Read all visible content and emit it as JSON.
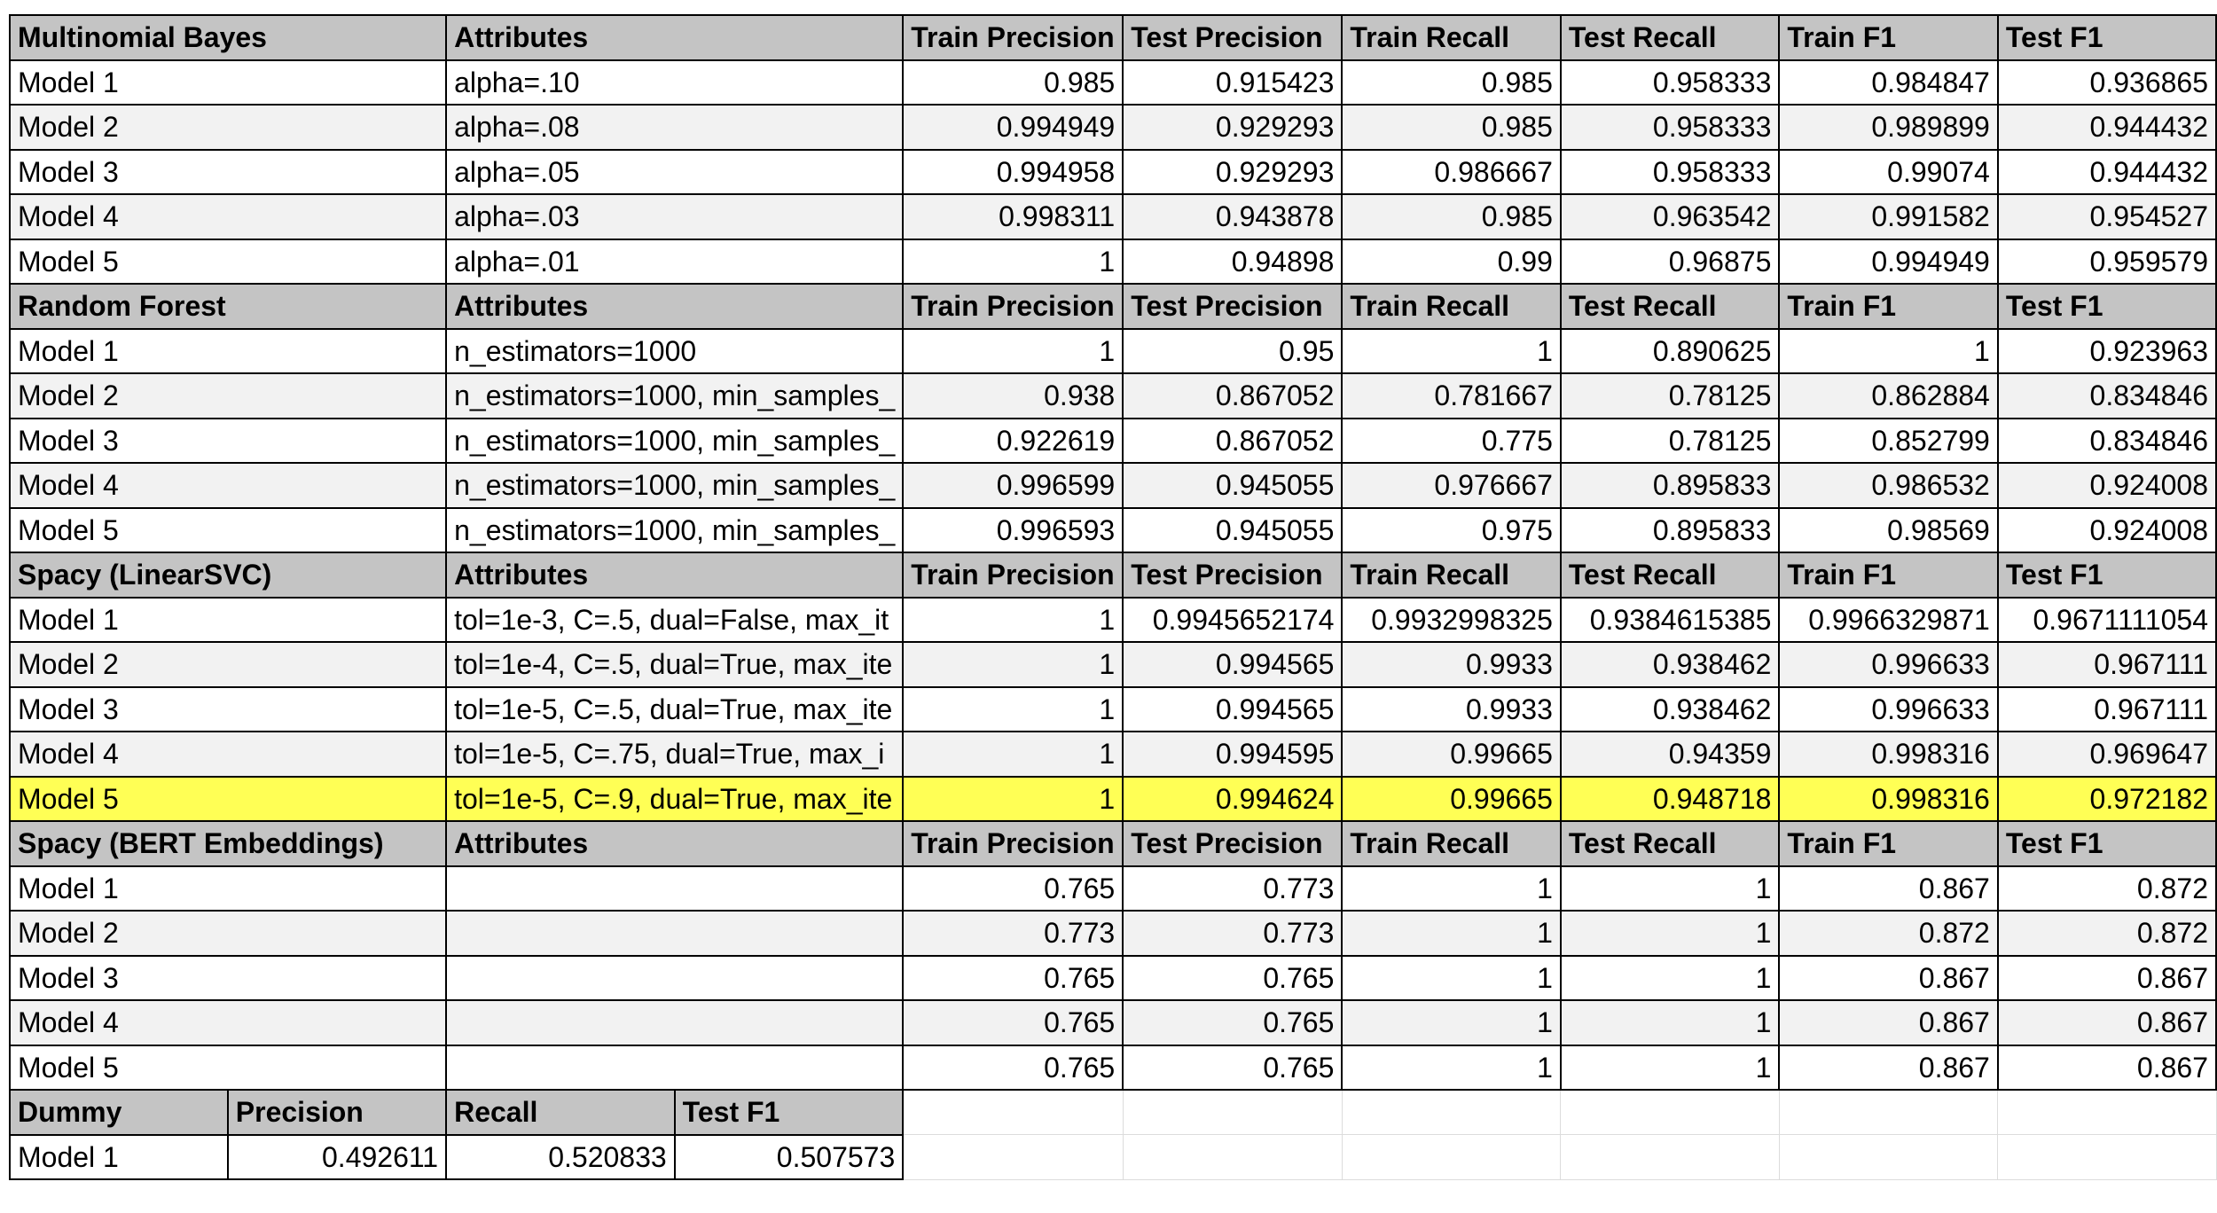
{
  "sections": [
    {
      "header": [
        "Multinomial Bayes",
        "Attributes",
        "Train Precision",
        "Test Precision",
        "Train Recall",
        "Test Recall",
        "Train F1",
        "Test F1"
      ],
      "rows": [
        [
          "Model 1",
          "alpha=.10",
          "0.985",
          "0.915423",
          "0.985",
          "0.958333",
          "0.984847",
          "0.936865"
        ],
        [
          "Model 2",
          "alpha=.08",
          "0.994949",
          "0.929293",
          "0.985",
          "0.958333",
          "0.989899",
          "0.944432"
        ],
        [
          "Model 3",
          "alpha=.05",
          "0.994958",
          "0.929293",
          "0.986667",
          "0.958333",
          "0.99074",
          "0.944432"
        ],
        [
          "Model 4",
          "alpha=.03",
          "0.998311",
          "0.943878",
          "0.985",
          "0.963542",
          "0.991582",
          "0.954527"
        ],
        [
          "Model 5",
          "alpha=.01",
          "1",
          "0.94898",
          "0.99",
          "0.96875",
          "0.994949",
          "0.959579"
        ]
      ]
    },
    {
      "header": [
        "Random Forest",
        "Attributes",
        "Train Precision",
        "Test Precision",
        "Train Recall",
        "Test Recall",
        "Train F1",
        "Test F1"
      ],
      "rows": [
        [
          "Model 1",
          "n_estimators=1000",
          "1",
          "0.95",
          "1",
          "0.890625",
          "1",
          "0.923963"
        ],
        [
          "Model 2",
          "n_estimators=1000, min_samples_",
          "0.938",
          "0.867052",
          "0.781667",
          "0.78125",
          "0.862884",
          "0.834846"
        ],
        [
          "Model 3",
          "n_estimators=1000, min_samples_",
          "0.922619",
          "0.867052",
          "0.775",
          "0.78125",
          "0.852799",
          "0.834846"
        ],
        [
          "Model 4",
          "n_estimators=1000, min_samples_",
          "0.996599",
          "0.945055",
          "0.976667",
          "0.895833",
          "0.986532",
          "0.924008"
        ],
        [
          "Model 5",
          "n_estimators=1000, min_samples_",
          "0.996593",
          "0.945055",
          "0.975",
          "0.895833",
          "0.98569",
          "0.924008"
        ]
      ]
    },
    {
      "header": [
        "Spacy (LinearSVC)",
        "Attributes",
        "Train Precision",
        "Test Precision",
        "Train Recall",
        "Test Recall",
        "Train F1",
        "Test F1"
      ],
      "rows": [
        [
          "Model 1",
          "tol=1e-3, C=.5, dual=False, max_it",
          "1",
          "0.9945652174",
          "0.9932998325",
          "0.9384615385",
          "0.9966329871",
          "0.9671111054"
        ],
        [
          "Model 2",
          "tol=1e-4, C=.5, dual=True, max_ite",
          "1",
          "0.994565",
          "0.9933",
          "0.938462",
          "0.996633",
          "0.967111"
        ],
        [
          "Model 3",
          "tol=1e-5, C=.5, dual=True, max_ite",
          "1",
          "0.994565",
          "0.9933",
          "0.938462",
          "0.996633",
          "0.967111"
        ],
        [
          "Model 4",
          "tol=1e-5, C=.75, dual=True, max_i",
          "1",
          "0.994595",
          "0.99665",
          "0.94359",
          "0.998316",
          "0.969647"
        ],
        [
          "Model 5",
          "tol=1e-5, C=.9, dual=True, max_ite",
          "1",
          "0.994624",
          "0.99665",
          "0.948718",
          "0.998316",
          "0.972182"
        ]
      ],
      "highlight_row": 4,
      "highlight_color": "#ffff55"
    },
    {
      "header": [
        "Spacy (BERT Embeddings)",
        "Attributes",
        "Train Precision",
        "Test Precision",
        "Train Recall",
        "Test Recall",
        "Train F1",
        "Test F1"
      ],
      "rows": [
        [
          "Model 1",
          "",
          "0.765",
          "0.773",
          "1",
          "1",
          "0.867",
          "0.872"
        ],
        [
          "Model 2",
          "",
          "0.773",
          "0.773",
          "1",
          "1",
          "0.872",
          "0.872"
        ],
        [
          "Model 3",
          "",
          "0.765",
          "0.765",
          "1",
          "1",
          "0.867",
          "0.867"
        ],
        [
          "Model 4",
          "",
          "0.765",
          "0.765",
          "1",
          "1",
          "0.867",
          "0.867"
        ],
        [
          "Model 5",
          "",
          "0.765",
          "0.765",
          "1",
          "1",
          "0.867",
          "0.867"
        ]
      ]
    }
  ],
  "dummy": {
    "header": [
      "Dummy",
      "Precision",
      "Recall",
      "Test F1"
    ],
    "rows": [
      [
        "Model 1",
        "0.492611",
        "0.520833",
        "0.507573"
      ]
    ]
  },
  "colors": {
    "header_bg": "#c4c4c4",
    "alt_row_bg": "#f2f2f2",
    "highlight_bg": "#ffff55"
  }
}
